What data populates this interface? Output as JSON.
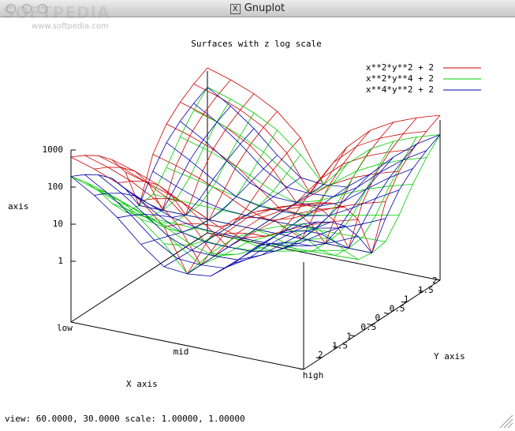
{
  "window": {
    "title": "Gnuplot",
    "watermark": "SOFTPEDIA",
    "watermark_url": "www.softpedia.com"
  },
  "plot": {
    "title": "Surfaces with z log scale",
    "legend": [
      {
        "label": "x**2*y**2 + 2",
        "color": "#cc0000"
      },
      {
        "label": "x**2*y**4 + 2",
        "color": "#00cc00"
      },
      {
        "label": "x**4*y**2 + 2",
        "color": "#0000aa"
      }
    ],
    "z_axis": {
      "label": "axis",
      "ticks": [
        "1000",
        "100",
        "10",
        "1"
      ]
    },
    "x_axis": {
      "label": "X axis",
      "ticks": [
        "low",
        "mid",
        "high"
      ]
    },
    "y_axis": {
      "label": "Y axis",
      "ticks": [
        "2",
        "1.5",
        "1",
        "0.5",
        "0",
        "0.5",
        "1",
        "1.5",
        "2"
      ]
    }
  },
  "status": "view: 60.0000, 30.0000   scale: 1.00000, 1.00000"
}
